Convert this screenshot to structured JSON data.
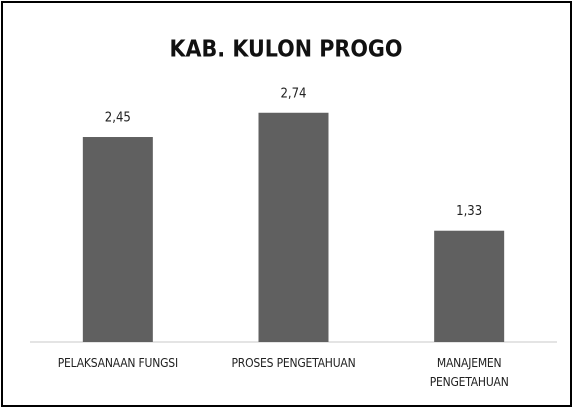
{
  "chart_data": {
    "type": "bar",
    "title": "KAB. KULON PROGO",
    "categories": [
      "PELAKSANAAN FUNGSI",
      "PROSES PENGETAHUAN",
      "MANAJEMEN PENGETAHUAN"
    ],
    "values": [
      2.45,
      2.74,
      1.33
    ],
    "value_labels": [
      "2,45",
      "2,74",
      "1,33"
    ],
    "color": "#606060",
    "ylim": [
      0,
      3
    ]
  }
}
